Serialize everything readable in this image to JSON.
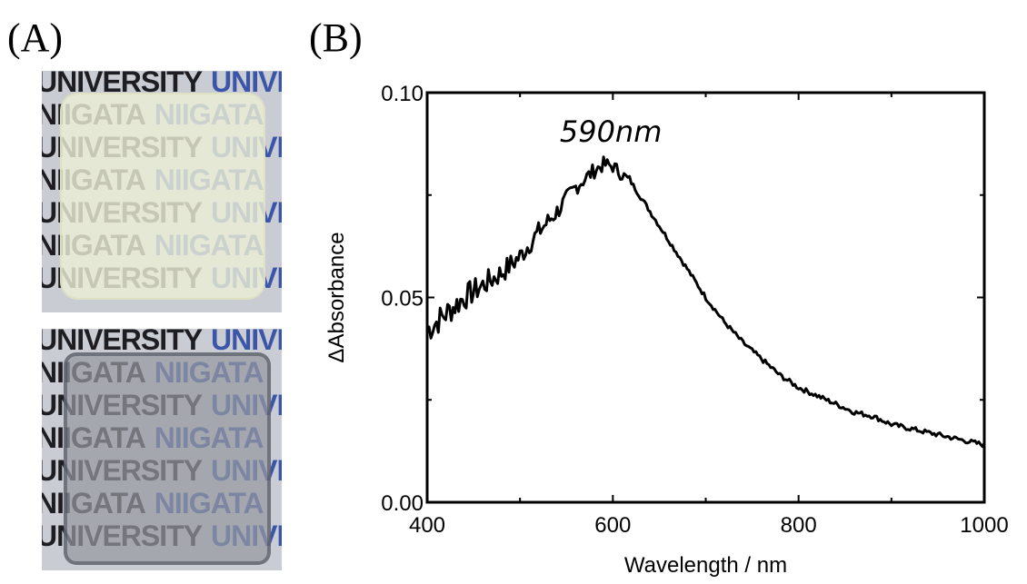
{
  "panels": {
    "a_label": "(A)",
    "b_label": "(B)"
  },
  "photo": {
    "rows_top": [
      [
        "UNIVERSITY",
        "UNIVERSITY"
      ],
      [
        "NIIGATA",
        "NIIGATA"
      ],
      [
        "UNIVERSITY",
        "UNIVERSITY"
      ],
      [
        "NIIGATA",
        "NIIGATA"
      ],
      [
        "UNIVERSITY",
        "UNIVERSITY"
      ],
      [
        "NIIGATA",
        "NIIGATA"
      ],
      [
        "UNIVERSITY",
        "UNIVERSITY"
      ]
    ],
    "rows_bottom": [
      [
        "UNIVERSITY",
        "UNIVERSITY"
      ],
      [
        "NIIGATA",
        "NIIGATA"
      ],
      [
        "UNIVERSITY",
        "UNIVERSITY"
      ],
      [
        "NIIGATA",
        "NIIGATA"
      ],
      [
        "UNIVERSITY",
        "UNIVERSITY"
      ],
      [
        "NIIGATA",
        "NIIGATA"
      ],
      [
        "UNIVERSITY",
        "UNIVERSITY"
      ]
    ]
  },
  "chart_data": {
    "type": "line",
    "title": "",
    "xlabel": "Wavelength / nm",
    "ylabel": "ΔAbsorbance",
    "xlim": [
      400,
      1000
    ],
    "ylim": [
      0.0,
      0.1
    ],
    "xticks": [
      400,
      600,
      800,
      1000
    ],
    "xtick_labels": [
      "400",
      "600",
      "800",
      "1000"
    ],
    "yticks": [
      0.0,
      0.05,
      0.1
    ],
    "ytick_labels": [
      "0.00",
      "0.05",
      "0.10"
    ],
    "grid": false,
    "annotation": {
      "text": "590nm",
      "x": 590,
      "y": 0.088
    },
    "series": [
      {
        "name": "ΔAbsorbance",
        "x": [
          400,
          420,
          440,
          460,
          480,
          500,
          520,
          540,
          560,
          580,
          590,
          600,
          620,
          640,
          660,
          680,
          700,
          720,
          740,
          760,
          780,
          800,
          820,
          840,
          860,
          880,
          900,
          920,
          940,
          960,
          980,
          1000
        ],
        "y": [
          0.042,
          0.046,
          0.05,
          0.053,
          0.056,
          0.06,
          0.066,
          0.071,
          0.077,
          0.081,
          0.0825,
          0.082,
          0.078,
          0.071,
          0.064,
          0.057,
          0.05,
          0.044,
          0.039,
          0.035,
          0.031,
          0.028,
          0.026,
          0.024,
          0.022,
          0.021,
          0.019,
          0.018,
          0.017,
          0.016,
          0.015,
          0.014
        ]
      }
    ]
  }
}
